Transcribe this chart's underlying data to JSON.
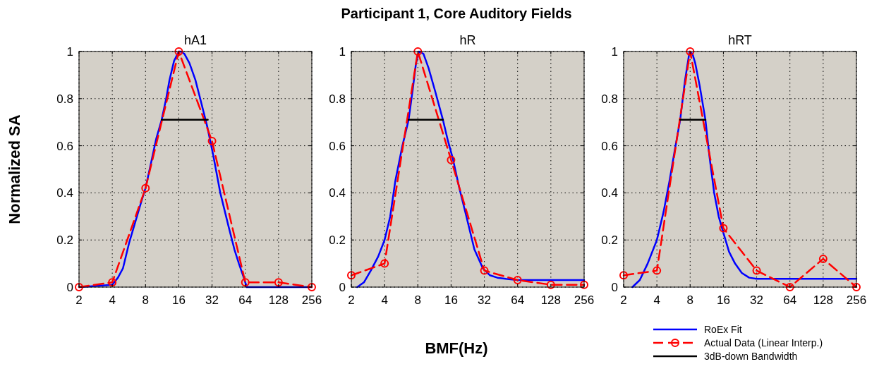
{
  "chart_data": [
    {
      "type": "line",
      "title": "hA1",
      "ylabel": "Normalized SA",
      "log": "x",
      "xlim": [
        2,
        256
      ],
      "ylim": [
        0,
        1
      ],
      "xticks": [
        2,
        4,
        8,
        16,
        32,
        64,
        128,
        256
      ],
      "yticks": [
        0,
        0.2,
        0.4,
        0.6,
        0.8,
        1
      ],
      "grid": true,
      "legend": false,
      "series": [
        {
          "color": "#0000ff",
          "marker": "none",
          "line_style": "solid",
          "x": [
            2,
            4,
            4.5,
            5,
            5.7,
            6.5,
            7.3,
            8,
            9,
            10,
            11.2,
            12.3,
            13.2,
            14.5,
            16,
            16.6,
            18,
            20,
            22.6,
            25,
            29,
            32.8,
            38,
            45,
            51,
            56,
            62,
            66,
            256
          ],
          "values": [
            0,
            0.01,
            0.04,
            0.08,
            0.19,
            0.28,
            0.36,
            0.42,
            0.53,
            0.63,
            0.71,
            0.8,
            0.88,
            0.96,
            1,
            1,
            0.99,
            0.95,
            0.88,
            0.8,
            0.68,
            0.56,
            0.4,
            0.26,
            0.16,
            0.1,
            0.04,
            0,
            0
          ]
        },
        {
          "color": "#ff0000",
          "marker": "circle",
          "line_style": "dashed",
          "x": [
            2,
            4,
            8,
            16,
            32,
            64,
            128,
            256
          ],
          "values": [
            0,
            0.02,
            0.42,
            1,
            0.62,
            0.02,
            0.02,
            0
          ]
        },
        {
          "color": "#000000",
          "marker": "none",
          "line_style": "solid",
          "x": [
            11.2,
            29.3
          ],
          "values": [
            0.71,
            0.71
          ]
        }
      ]
    },
    {
      "type": "line",
      "title": "hR",
      "xlabel": "BMF(Hz)",
      "annotations": [
        "Participant 1, Core Auditory Fields"
      ],
      "log": "x",
      "xlim": [
        2,
        256
      ],
      "ylim": [
        0,
        1
      ],
      "xticks": [
        2,
        4,
        8,
        16,
        32,
        64,
        128,
        256
      ],
      "yticks": [
        0,
        0.2,
        0.4,
        0.6,
        0.8,
        1
      ],
      "grid": true,
      "legend": false,
      "series": [
        {
          "color": "#0000ff",
          "marker": "none",
          "line_style": "solid",
          "x": [
            2.26,
            2.6,
            3,
            3.5,
            4,
            4.5,
            5,
            5.8,
            6.6,
            7.2,
            7.7,
            8.2,
            9,
            10,
            11.5,
            13.5,
            15,
            16.5,
            19,
            22,
            26,
            31,
            36,
            42,
            50,
            64,
            100,
            256
          ],
          "values": [
            0,
            0.02,
            0.07,
            0.13,
            0.2,
            0.3,
            0.45,
            0.6,
            0.71,
            0.84,
            0.95,
            1,
            0.99,
            0.93,
            0.83,
            0.71,
            0.62,
            0.55,
            0.42,
            0.3,
            0.16,
            0.08,
            0.05,
            0.04,
            0.035,
            0.03,
            0.03,
            0.03
          ]
        },
        {
          "color": "#ff0000",
          "marker": "circle",
          "line_style": "dashed",
          "x": [
            2,
            4,
            8,
            16,
            32,
            64,
            128,
            256
          ],
          "values": [
            0.05,
            0.1,
            1,
            0.54,
            0.07,
            0.03,
            0.01,
            0.01
          ]
        },
        {
          "color": "#000000",
          "marker": "none",
          "line_style": "solid",
          "x": [
            6.6,
            13.5
          ],
          "values": [
            0.71,
            0.71
          ]
        }
      ]
    },
    {
      "type": "line",
      "title": "hRT",
      "log": "x",
      "xlim": [
        2,
        256
      ],
      "ylim": [
        0,
        1
      ],
      "xticks": [
        2,
        4,
        8,
        16,
        32,
        64,
        128,
        256
      ],
      "yticks": [
        0,
        0.2,
        0.4,
        0.6,
        0.8,
        1
      ],
      "grid": true,
      "legend": "bottom right",
      "series": [
        {
          "name": "RoEx Fit",
          "color": "#0000ff",
          "marker": "none",
          "line_style": "solid",
          "x": [
            2.4,
            2.8,
            3.3,
            4,
            4.6,
            5.2,
            5.8,
            6.5,
            7.2,
            7.9,
            8.4,
            8.9,
            9.8,
            11,
            12,
            13.2,
            14.5,
            16,
            18,
            20.4,
            23.5,
            27.4,
            32,
            40,
            64,
            256
          ],
          "values": [
            0,
            0.03,
            0.1,
            0.2,
            0.32,
            0.45,
            0.58,
            0.71,
            0.88,
            1,
            0.99,
            0.95,
            0.85,
            0.71,
            0.55,
            0.4,
            0.3,
            0.23,
            0.15,
            0.1,
            0.06,
            0.04,
            0.035,
            0.035,
            0.035,
            0.035
          ]
        },
        {
          "name": "Actual Data (Linear Interp.)",
          "color": "#ff0000",
          "marker": "circle",
          "line_style": "dashed",
          "x": [
            2,
            4,
            8,
            16,
            32,
            64,
            128,
            256
          ],
          "values": [
            0.05,
            0.07,
            1,
            0.25,
            0.07,
            0,
            0.12,
            0
          ]
        },
        {
          "name": "3dB-down Bandwidth",
          "color": "#000000",
          "marker": "none",
          "line_style": "solid",
          "x": [
            6.5,
            11
          ],
          "values": [
            0.71,
            0.71
          ]
        }
      ]
    }
  ]
}
